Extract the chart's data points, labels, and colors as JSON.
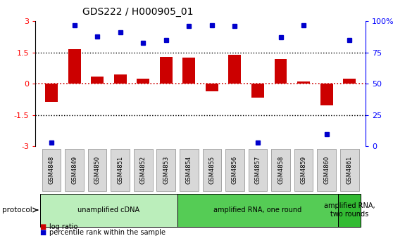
{
  "title": "GDS222 / H000905_01",
  "samples": [
    "GSM4848",
    "GSM4849",
    "GSM4850",
    "GSM4851",
    "GSM4852",
    "GSM4853",
    "GSM4854",
    "GSM4855",
    "GSM4856",
    "GSM4857",
    "GSM4858",
    "GSM4859",
    "GSM4860",
    "GSM4861"
  ],
  "log_ratio": [
    -0.85,
    1.65,
    0.35,
    0.45,
    0.25,
    1.3,
    1.25,
    -0.35,
    1.4,
    -0.65,
    1.2,
    0.12,
    -1.05,
    0.25
  ],
  "percentile": [
    3,
    97,
    88,
    91,
    83,
    85,
    96,
    97,
    96,
    3,
    87,
    97,
    10,
    85
  ],
  "ylim": [
    -3,
    3
  ],
  "y2lim": [
    0,
    100
  ],
  "dotted_lines_black": [
    1.5,
    -1.5
  ],
  "bar_color": "#cc0000",
  "dot_color": "#0000cc",
  "bg_color": "#ffffff",
  "protocol_groups": [
    {
      "label": "unamplified cDNA",
      "start": 0,
      "end": 6,
      "color": "#bbeebb"
    },
    {
      "label": "amplified RNA, one round",
      "start": 6,
      "end": 13,
      "color": "#55cc55"
    },
    {
      "label": "amplified RNA,\ntwo rounds",
      "start": 13,
      "end": 14,
      "color": "#33bb33"
    }
  ],
  "yticks_left": [
    -3,
    -1.5,
    0,
    1.5,
    3
  ],
  "yticks_right": [
    0,
    25,
    50,
    75,
    100
  ],
  "legend_items": [
    {
      "label": "log ratio",
      "color": "#cc0000"
    },
    {
      "label": "percentile rank within the sample",
      "color": "#0000cc"
    }
  ]
}
